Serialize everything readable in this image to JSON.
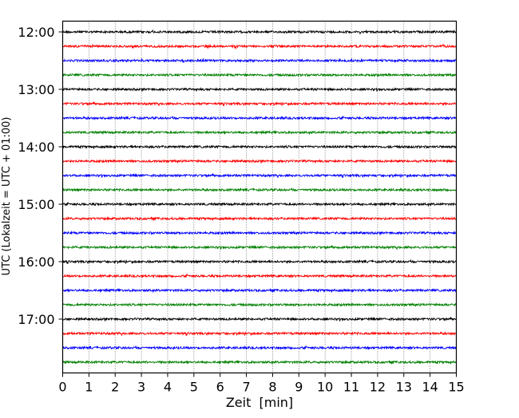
{
  "chart_data": {
    "type": "line",
    "subtype": "seismogram-dayplot",
    "title": "",
    "xlabel": "Zeit  [min]",
    "ylabel": "UTC (Lokalzeit = UTC + 01:00)",
    "xlim": [
      0,
      15
    ],
    "xticks": [
      "0",
      "1",
      "2",
      "3",
      "4",
      "5",
      "6",
      "7",
      "8",
      "9",
      "10",
      "11",
      "12",
      "13",
      "14",
      "15"
    ],
    "yticks": [
      "12:00",
      "13:00",
      "14:00",
      "15:00",
      "16:00",
      "17:00"
    ],
    "grid": "vertical dotted",
    "interval_minutes": 15,
    "start_time": "12:00",
    "trace_count": 24,
    "colors": [
      "#000000",
      "#ff0000",
      "#0000ff",
      "#008000"
    ],
    "trace_noise_amplitude": "low background noise, occasional small spikes"
  }
}
